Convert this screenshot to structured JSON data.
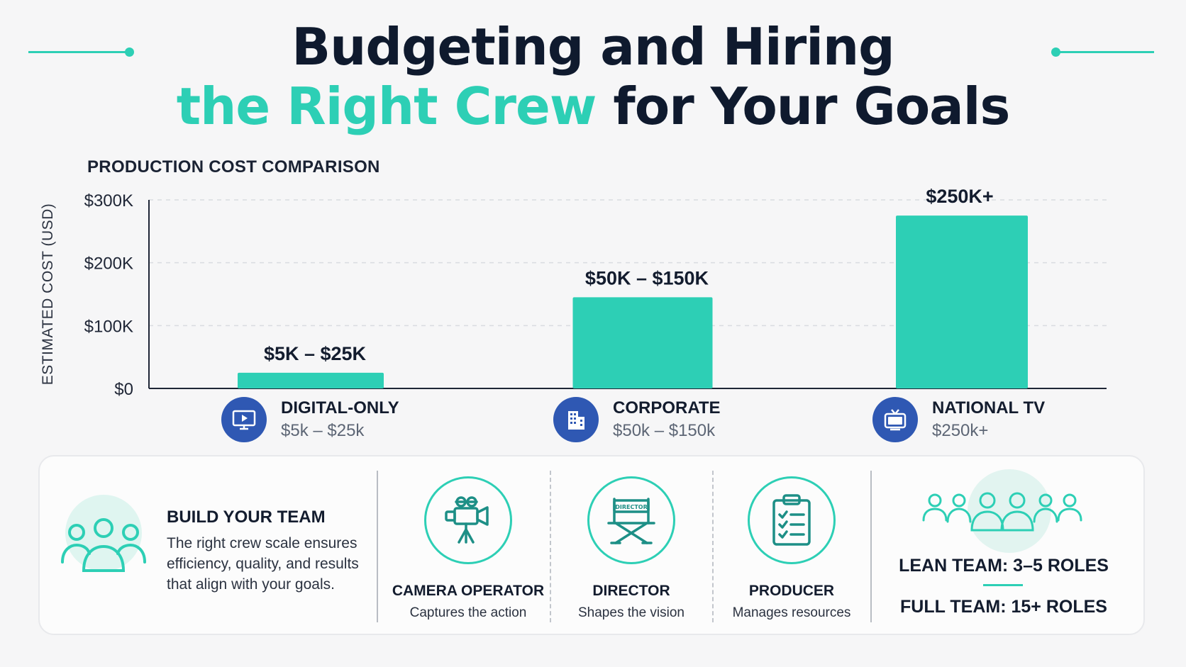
{
  "header": {
    "line1": "Budgeting and Hiring",
    "line2_accent": "the Right Crew",
    "line2_rest": " for Your Goals"
  },
  "colors": {
    "accent": "#2dcfb5",
    "navy": "#0f1a2e",
    "icon_blue": "#2f58b3"
  },
  "chart_data": {
    "type": "bar",
    "title": "PRODUCTION COST COMPARISON",
    "ylabel": "ESTIMATED COST (USD)",
    "ylim": [
      0,
      300000
    ],
    "yticks": [
      {
        "value": 0,
        "label": "$0"
      },
      {
        "value": 100000,
        "label": "$100K"
      },
      {
        "value": 200000,
        "label": "$200K"
      },
      {
        "value": 300000,
        "label": "$300K"
      }
    ],
    "grid": true,
    "categories": [
      "DIGITAL-ONLY",
      "CORPORATE",
      "NATIONAL TV"
    ],
    "values": [
      25000,
      145000,
      275000
    ],
    "data_labels": [
      "$5K – $25K",
      "$50K – $150K",
      "$250K+"
    ]
  },
  "categories_info": [
    {
      "name": "DIGITAL-ONLY",
      "range": "$5k – $25k",
      "icon": "monitor-play-icon"
    },
    {
      "name": "CORPORATE",
      "range": "$50k – $150k",
      "icon": "office-building-icon"
    },
    {
      "name": "NATIONAL TV",
      "range": "$250k+",
      "icon": "television-icon"
    }
  ],
  "team": {
    "title": "BUILD YOUR TEAM",
    "description": "The right crew scale ensures efficiency, quality, and results that align with your goals.",
    "icon": "team-group-icon"
  },
  "roles": [
    {
      "name": "CAMERA OPERATOR",
      "desc": "Captures the action",
      "icon": "video-camera-icon"
    },
    {
      "name": "DIRECTOR",
      "desc": "Shapes the vision",
      "icon": "director-chair-icon",
      "icon_text": "DIRECTOR"
    },
    {
      "name": "PRODUCER",
      "desc": "Manages resources",
      "icon": "clipboard-checklist-icon"
    }
  ],
  "team_sizes": {
    "lean": "LEAN TEAM:  3–5 ROLES",
    "full": "FULL TEAM:  15+ ROLES"
  }
}
